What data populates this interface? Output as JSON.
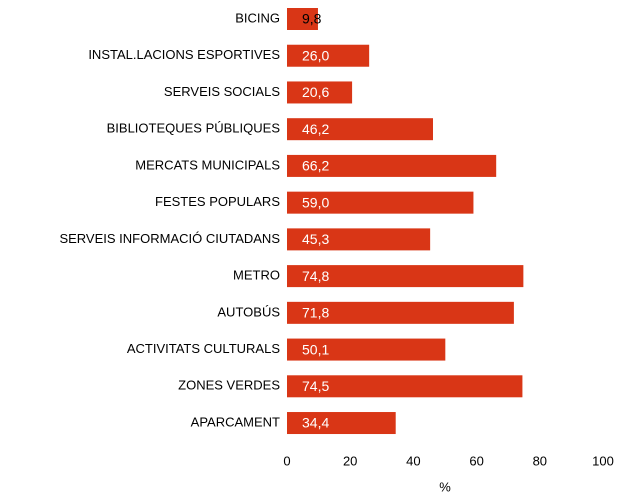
{
  "chart_data": {
    "type": "barh",
    "categories": [
      "BICING",
      "INSTAL.LACIONS ESPORTIVES",
      "SERVEIS SOCIALS",
      "BIBLIOTEQUES PÚBLIQUES",
      "MERCATS MUNICIPALS",
      "FESTES POPULARS",
      "SERVEIS INFORMACIÓ CIUTADANS",
      "METRO",
      "AUTOBÚS",
      "ACTIVITATS CULTURALS",
      "ZONES VERDES",
      "APARCAMENT"
    ],
    "values": [
      9.8,
      26.0,
      20.6,
      46.2,
      66.2,
      59.0,
      45.3,
      74.8,
      71.8,
      50.1,
      74.5,
      34.4
    ],
    "value_labels": [
      "9,8",
      "26,0",
      "20,6",
      "46,2",
      "66,2",
      "59,0",
      "45,3",
      "74,8",
      "71,8",
      "50,1",
      "74,5",
      "34,4"
    ],
    "color": "#d93616",
    "xlabel": "%",
    "xlim": [
      0,
      100
    ],
    "xticks": [
      0,
      20,
      40,
      60,
      80,
      100
    ],
    "grid": false
  }
}
